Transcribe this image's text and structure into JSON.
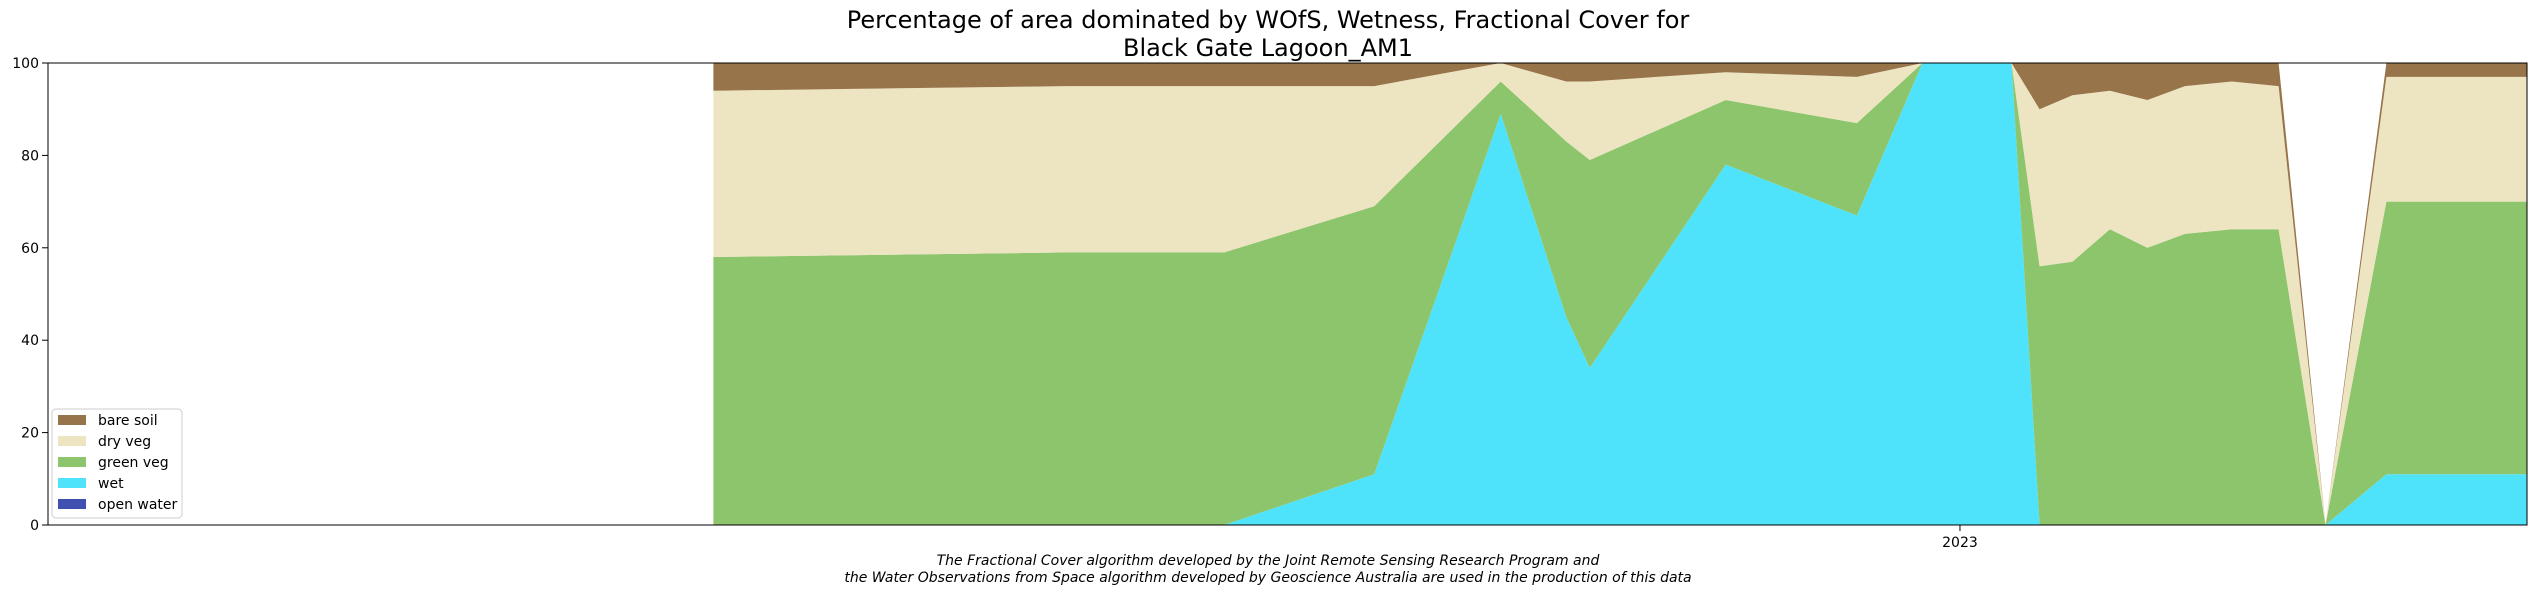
{
  "chart_data": {
    "type": "area",
    "title": "Percentage of area dominated by WOfS, Wetness, Fractional Cover for",
    "subtitle": "Black Gate Lagoon_AM1",
    "ylim": [
      0,
      100
    ],
    "yticks": [
      "0",
      "20",
      "40",
      "60",
      "80",
      "100"
    ],
    "xtick_label": "2023",
    "caption_line1": "The Fractional Cover algorithm developed by the Joint Remote Sensing Research Program and",
    "caption_line2": "the Water Observations from Space algorithm developed by Geoscience Australia are used in the production of this data",
    "legend_placement": "lower-left",
    "legend": [
      "bare soil",
      "dry veg",
      "green veg",
      "wet",
      "open water"
    ],
    "x": [
      "2022-04-10",
      "2022-06-25",
      "2022-07-28",
      "2022-08-29",
      "2022-09-25",
      "2022-10-09",
      "2022-10-14",
      "2022-11-12",
      "2022-12-10",
      "2022-12-24",
      "2023-01-05",
      "2023-01-12",
      "2023-01-18",
      "2023-01-25",
      "2023-02-02",
      "2023-02-10",
      "2023-02-18",
      "2023-02-28",
      "2023-03-10",
      "2023-03-20",
      "2023-04-02",
      "2023-05-02"
    ],
    "xlim": [
      "2021-11-19",
      "2023-05-02"
    ],
    "xtick_date": "2023-01-01",
    "series": [
      {
        "name": "open water",
        "color": "#4050b0",
        "values": [
          0,
          0,
          0,
          0,
          0,
          0,
          0,
          0,
          0,
          0,
          0,
          0,
          0,
          0,
          0,
          0,
          0,
          0,
          0,
          0,
          0,
          0
        ]
      },
      {
        "name": "wet",
        "color": "#4fe3fb",
        "values": [
          0,
          0,
          0,
          11,
          89,
          45,
          34,
          78,
          67,
          100,
          100,
          100,
          0,
          0,
          0,
          0,
          0,
          0,
          0,
          0,
          11,
          11
        ]
      },
      {
        "name": "green veg",
        "color": "#8dc56c",
        "values": [
          58,
          59,
          59,
          58,
          7,
          38,
          45,
          14,
          20,
          0,
          0,
          0,
          56,
          57,
          64,
          60,
          63,
          64,
          64,
          0,
          59,
          59
        ]
      },
      {
        "name": "dry veg",
        "color": "#ede4c1",
        "values": [
          36,
          36,
          36,
          26,
          4,
          13,
          17,
          6,
          10,
          0,
          0,
          0,
          34,
          36,
          30,
          32,
          32,
          32,
          31,
          0,
          27,
          27
        ]
      },
      {
        "name": "bare soil",
        "color": "#98744a",
        "values": [
          6,
          5,
          5,
          5,
          0,
          4,
          4,
          2,
          3,
          0,
          0,
          0,
          10,
          7,
          6,
          8,
          5,
          4,
          5,
          0,
          3,
          3
        ]
      }
    ]
  }
}
